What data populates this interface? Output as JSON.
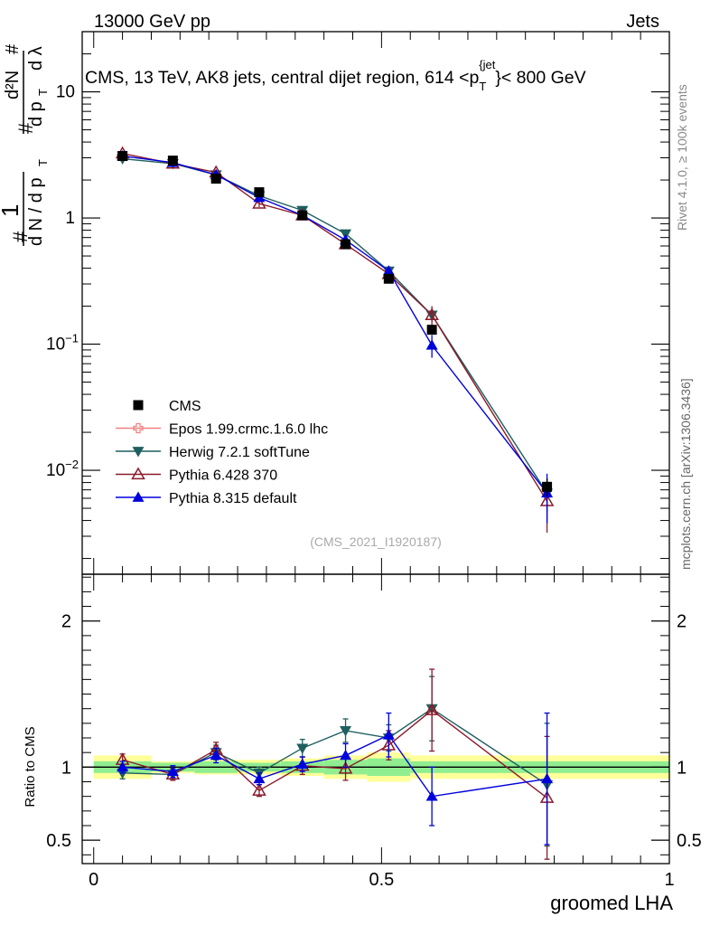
{
  "header": {
    "left": "13000 GeV pp",
    "right": "Jets",
    "title": "CMS, 13 TeV, AK8 jets, central dijet region, 614 <p",
    "title_sub": "T",
    "title_sup": "{jet",
    "title_end": "}< 800 GeV"
  },
  "side_labels": {
    "rivet": "Rivet 4.1.0, ≥ 100k events",
    "mcplots": "mcplots.cern.ch [arXiv:1306.3436]"
  },
  "watermark": "(CMS_2021_I1920187)",
  "colors": {
    "cms": "#000000",
    "epos": "#f08080",
    "herwig": "#1f5f5f",
    "pythia6": "#8b1a2b",
    "pythia8": "#0000dd",
    "band_inner": "#90ee90",
    "band_outer": "#ffff99"
  },
  "chart_data": [
    {
      "type": "scatter",
      "panel": "main",
      "yscale": "log",
      "ylim": [
        0.0015,
        30
      ],
      "xlim": [
        -0.02,
        1.0
      ],
      "ylabel": "1/(dN/dp_T) d²N/(dp_T dλ)",
      "ytick_labels": [
        "10^-2",
        "10^-1",
        "1",
        "10"
      ],
      "x": [
        0.05,
        0.1375,
        0.2125,
        0.2875,
        0.3625,
        0.4375,
        0.5125,
        0.5875,
        0.7875
      ],
      "series": [
        {
          "name": "CMS",
          "marker": "square",
          "values": [
            3.1,
            2.85,
            2.05,
            1.6,
            1.05,
            0.62,
            0.33,
            0.13,
            0.0074
          ],
          "errors": [
            0.1,
            0.1,
            0.08,
            0.06,
            0.05,
            0.03,
            0.02,
            0.01,
            0.0012
          ]
        },
        {
          "name": "Epos 1.99.crmc.1.6.0 lhc",
          "marker": "open-cross",
          "values": [],
          "errors": []
        },
        {
          "name": "Herwig 7.2.1 softTune",
          "marker": "triangle-down",
          "values": [
            2.95,
            2.7,
            2.2,
            1.5,
            1.15,
            0.75,
            0.38,
            0.17,
            0.0066
          ],
          "errors": [
            0.1,
            0.09,
            0.08,
            0.06,
            0.05,
            0.04,
            0.03,
            0.02,
            0.002
          ]
        },
        {
          "name": "Pythia 6.428 370",
          "marker": "triangle-open",
          "values": [
            3.25,
            2.7,
            2.3,
            1.3,
            1.05,
            0.62,
            0.36,
            0.17,
            0.0057
          ],
          "errors": [
            0.15,
            0.1,
            0.1,
            0.08,
            0.06,
            0.04,
            0.03,
            0.03,
            0.0025
          ]
        },
        {
          "name": "Pythia 8.315 default",
          "marker": "triangle-up",
          "values": [
            3.1,
            2.75,
            2.2,
            1.45,
            1.05,
            0.67,
            0.38,
            0.098,
            0.0066
          ],
          "errors": [
            0.1,
            0.09,
            0.08,
            0.06,
            0.05,
            0.04,
            0.03,
            0.02,
            0.0028
          ]
        }
      ]
    },
    {
      "type": "scatter",
      "panel": "ratio",
      "ylim": [
        0.34,
        2.32
      ],
      "xlim": [
        -0.02,
        1.0
      ],
      "xlabel": "groomed LHA",
      "ylabel": "Ratio to CMS",
      "xticks": [
        0,
        0.5,
        1
      ],
      "xtick_labels": [
        "0",
        "0.5",
        "1"
      ],
      "yticks": [
        0.5,
        1,
        2
      ],
      "ytick_labels": [
        "0.5",
        "1",
        "2"
      ],
      "x": [
        0.05,
        0.1375,
        0.2125,
        0.2875,
        0.3625,
        0.4375,
        0.5125,
        0.5875,
        0.7875
      ],
      "band_edges": [
        0.0,
        0.1,
        0.175,
        0.25,
        0.325,
        0.4,
        0.475,
        0.55,
        0.625,
        1.0
      ],
      "band_inner": [
        0.04,
        0.03,
        0.04,
        0.03,
        0.04,
        0.05,
        0.06,
        0.04,
        0.04
      ],
      "band_outer": [
        0.08,
        0.04,
        0.05,
        0.05,
        0.06,
        0.08,
        0.1,
        0.08,
        0.08
      ],
      "series": [
        {
          "name": "Herwig 7.2.1 softTune",
          "values": [
            0.96,
            0.95,
            1.1,
            0.96,
            1.13,
            1.25,
            1.2,
            1.4,
            0.88
          ],
          "errors": [
            0.04,
            0.04,
            0.05,
            0.04,
            0.06,
            0.08,
            0.09,
            0.22,
            0.42
          ]
        },
        {
          "name": "Pythia 6.428 370",
          "values": [
            1.05,
            0.95,
            1.12,
            0.84,
            1.01,
            0.99,
            1.15,
            1.39,
            0.79
          ],
          "errors": [
            0.04,
            0.04,
            0.05,
            0.04,
            0.06,
            0.08,
            0.1,
            0.28,
            0.42
          ]
        },
        {
          "name": "Pythia 8.315 default",
          "values": [
            1.0,
            0.97,
            1.08,
            0.92,
            1.02,
            1.08,
            1.22,
            0.8,
            0.92
          ],
          "errors": [
            0.04,
            0.04,
            0.05,
            0.04,
            0.05,
            0.08,
            0.15,
            0.2,
            0.45
          ]
        }
      ]
    }
  ]
}
